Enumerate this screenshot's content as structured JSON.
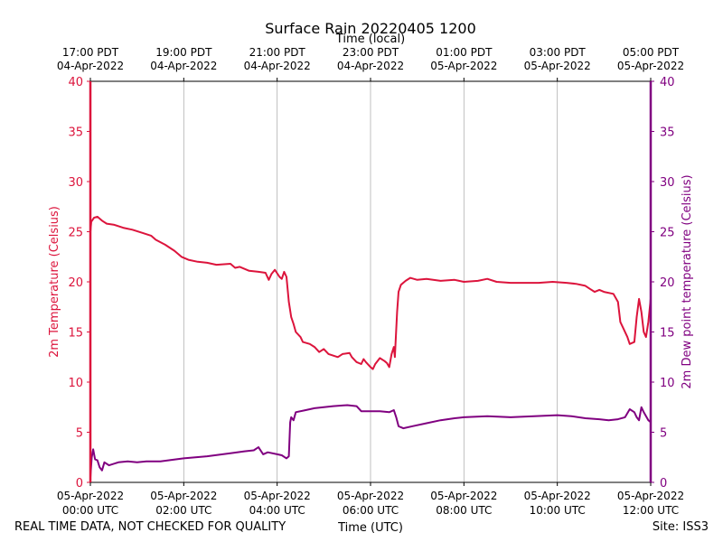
{
  "chart_data": {
    "type": "line",
    "title": "Surface Rain 20220405 1200",
    "top_axis_label": "Time (local)",
    "xlabel": "Time (UTC)",
    "ylabel_left": "2m Temperature (Celsius)",
    "ylabel_right": "2m Dew point temperature (Celsius)",
    "footer_left": "REAL TIME DATA, NOT CHECKED FOR QUALITY",
    "footer_right": "Site: ISS3",
    "xlim_hours_utc": [
      0,
      12
    ],
    "ylim": [
      0,
      40
    ],
    "yticks": [
      0,
      5,
      10,
      15,
      20,
      25,
      30,
      35,
      40
    ],
    "grid": "vertical",
    "colors": {
      "temperature": "#dc143c",
      "dewpoint": "#800080",
      "grid": "#b0b0b0",
      "axis": "#000000"
    },
    "x_ticks_utc": [
      {
        "hour": 0,
        "date": "05-Apr-2022",
        "time": "00:00 UTC"
      },
      {
        "hour": 2,
        "date": "05-Apr-2022",
        "time": "02:00 UTC"
      },
      {
        "hour": 4,
        "date": "05-Apr-2022",
        "time": "04:00 UTC"
      },
      {
        "hour": 6,
        "date": "05-Apr-2022",
        "time": "06:00 UTC"
      },
      {
        "hour": 8,
        "date": "05-Apr-2022",
        "time": "08:00 UTC"
      },
      {
        "hour": 10,
        "date": "05-Apr-2022",
        "time": "10:00 UTC"
      },
      {
        "hour": 12,
        "date": "05-Apr-2022",
        "time": "12:00 UTC"
      }
    ],
    "x_ticks_local": [
      {
        "hour": 0,
        "time": "17:00 PDT",
        "date": "04-Apr-2022"
      },
      {
        "hour": 2,
        "time": "19:00 PDT",
        "date": "04-Apr-2022"
      },
      {
        "hour": 4,
        "time": "21:00 PDT",
        "date": "04-Apr-2022"
      },
      {
        "hour": 6,
        "time": "23:00 PDT",
        "date": "04-Apr-2022"
      },
      {
        "hour": 8,
        "time": "01:00 PDT",
        "date": "05-Apr-2022"
      },
      {
        "hour": 10,
        "time": "03:00 PDT",
        "date": "05-Apr-2022"
      },
      {
        "hour": 12,
        "time": "05:00 PDT",
        "date": "05-Apr-2022"
      }
    ],
    "series": [
      {
        "name": "2m Temperature (Celsius)",
        "axis": "left",
        "points": [
          [
            0.0,
            25.0
          ],
          [
            0.02,
            26.0
          ],
          [
            0.08,
            26.4
          ],
          [
            0.15,
            26.5
          ],
          [
            0.25,
            26.1
          ],
          [
            0.35,
            25.8
          ],
          [
            0.5,
            25.7
          ],
          [
            0.7,
            25.4
          ],
          [
            0.9,
            25.2
          ],
          [
            1.1,
            24.9
          ],
          [
            1.3,
            24.6
          ],
          [
            1.4,
            24.2
          ],
          [
            1.6,
            23.7
          ],
          [
            1.8,
            23.1
          ],
          [
            1.95,
            22.5
          ],
          [
            2.1,
            22.2
          ],
          [
            2.3,
            22.0
          ],
          [
            2.5,
            21.9
          ],
          [
            2.7,
            21.7
          ],
          [
            3.0,
            21.8
          ],
          [
            3.1,
            21.4
          ],
          [
            3.2,
            21.5
          ],
          [
            3.4,
            21.1
          ],
          [
            3.6,
            21.0
          ],
          [
            3.75,
            20.9
          ],
          [
            3.82,
            20.2
          ],
          [
            3.88,
            20.8
          ],
          [
            3.95,
            21.2
          ],
          [
            4.05,
            20.5
          ],
          [
            4.1,
            20.3
          ],
          [
            4.15,
            21.0
          ],
          [
            4.2,
            20.5
          ],
          [
            4.25,
            18.0
          ],
          [
            4.3,
            16.5
          ],
          [
            4.35,
            15.8
          ],
          [
            4.4,
            15.0
          ],
          [
            4.5,
            14.5
          ],
          [
            4.55,
            14.0
          ],
          [
            4.7,
            13.8
          ],
          [
            4.8,
            13.5
          ],
          [
            4.9,
            13.0
          ],
          [
            5.0,
            13.3
          ],
          [
            5.1,
            12.8
          ],
          [
            5.3,
            12.5
          ],
          [
            5.4,
            12.8
          ],
          [
            5.55,
            12.9
          ],
          [
            5.6,
            12.5
          ],
          [
            5.7,
            12.0
          ],
          [
            5.8,
            11.8
          ],
          [
            5.85,
            12.3
          ],
          [
            5.9,
            12.0
          ],
          [
            6.0,
            11.5
          ],
          [
            6.05,
            11.3
          ],
          [
            6.1,
            11.8
          ],
          [
            6.2,
            12.4
          ],
          [
            6.3,
            12.1
          ],
          [
            6.35,
            11.9
          ],
          [
            6.4,
            11.5
          ],
          [
            6.45,
            12.8
          ],
          [
            6.5,
            13.5
          ],
          [
            6.52,
            12.5
          ],
          [
            6.57,
            17.0
          ],
          [
            6.6,
            19.0
          ],
          [
            6.65,
            19.7
          ],
          [
            6.75,
            20.1
          ],
          [
            6.85,
            20.4
          ],
          [
            7.0,
            20.2
          ],
          [
            7.2,
            20.3
          ],
          [
            7.5,
            20.1
          ],
          [
            7.8,
            20.2
          ],
          [
            8.0,
            20.0
          ],
          [
            8.3,
            20.1
          ],
          [
            8.5,
            20.3
          ],
          [
            8.7,
            20.0
          ],
          [
            9.0,
            19.9
          ],
          [
            9.3,
            19.9
          ],
          [
            9.6,
            19.9
          ],
          [
            9.9,
            20.0
          ],
          [
            10.2,
            19.9
          ],
          [
            10.4,
            19.8
          ],
          [
            10.6,
            19.6
          ],
          [
            10.7,
            19.3
          ],
          [
            10.8,
            19.0
          ],
          [
            10.9,
            19.2
          ],
          [
            11.0,
            19.0
          ],
          [
            11.2,
            18.8
          ],
          [
            11.3,
            18.0
          ],
          [
            11.35,
            16.0
          ],
          [
            11.4,
            15.5
          ],
          [
            11.5,
            14.5
          ],
          [
            11.55,
            13.8
          ],
          [
            11.65,
            14.0
          ],
          [
            11.7,
            16.5
          ],
          [
            11.75,
            18.3
          ],
          [
            11.8,
            17.0
          ],
          [
            11.85,
            15.0
          ],
          [
            11.9,
            14.5
          ],
          [
            11.95,
            16.0
          ],
          [
            12.0,
            18.3
          ]
        ]
      },
      {
        "name": "2m Dew point temperature (Celsius)",
        "axis": "right",
        "points": [
          [
            0.0,
            0.5
          ],
          [
            0.03,
            2.5
          ],
          [
            0.06,
            3.3
          ],
          [
            0.1,
            2.3
          ],
          [
            0.15,
            2.2
          ],
          [
            0.2,
            1.5
          ],
          [
            0.25,
            1.2
          ],
          [
            0.3,
            2.0
          ],
          [
            0.4,
            1.7
          ],
          [
            0.6,
            2.0
          ],
          [
            0.8,
            2.1
          ],
          [
            1.0,
            2.0
          ],
          [
            1.2,
            2.1
          ],
          [
            1.5,
            2.1
          ],
          [
            2.0,
            2.4
          ],
          [
            2.5,
            2.6
          ],
          [
            3.0,
            2.9
          ],
          [
            3.3,
            3.1
          ],
          [
            3.5,
            3.2
          ],
          [
            3.6,
            3.5
          ],
          [
            3.7,
            2.8
          ],
          [
            3.8,
            3.0
          ],
          [
            4.0,
            2.8
          ],
          [
            4.1,
            2.7
          ],
          [
            4.2,
            2.4
          ],
          [
            4.25,
            2.6
          ],
          [
            4.28,
            6.0
          ],
          [
            4.3,
            6.5
          ],
          [
            4.35,
            6.2
          ],
          [
            4.4,
            7.0
          ],
          [
            4.6,
            7.2
          ],
          [
            4.8,
            7.4
          ],
          [
            5.0,
            7.5
          ],
          [
            5.2,
            7.6
          ],
          [
            5.5,
            7.7
          ],
          [
            5.7,
            7.6
          ],
          [
            5.8,
            7.1
          ],
          [
            6.0,
            7.1
          ],
          [
            6.2,
            7.1
          ],
          [
            6.4,
            7.0
          ],
          [
            6.5,
            7.2
          ],
          [
            6.55,
            6.5
          ],
          [
            6.6,
            5.6
          ],
          [
            6.7,
            5.4
          ],
          [
            6.9,
            5.6
          ],
          [
            7.2,
            5.9
          ],
          [
            7.5,
            6.2
          ],
          [
            7.8,
            6.4
          ],
          [
            8.0,
            6.5
          ],
          [
            8.5,
            6.6
          ],
          [
            9.0,
            6.5
          ],
          [
            9.5,
            6.6
          ],
          [
            10.0,
            6.7
          ],
          [
            10.3,
            6.6
          ],
          [
            10.6,
            6.4
          ],
          [
            10.9,
            6.3
          ],
          [
            11.1,
            6.2
          ],
          [
            11.3,
            6.3
          ],
          [
            11.45,
            6.5
          ],
          [
            11.55,
            7.3
          ],
          [
            11.65,
            7.0
          ],
          [
            11.7,
            6.5
          ],
          [
            11.75,
            6.2
          ],
          [
            11.8,
            7.5
          ],
          [
            11.85,
            7.0
          ],
          [
            11.95,
            6.2
          ],
          [
            12.0,
            6.0
          ]
        ]
      }
    ]
  }
}
